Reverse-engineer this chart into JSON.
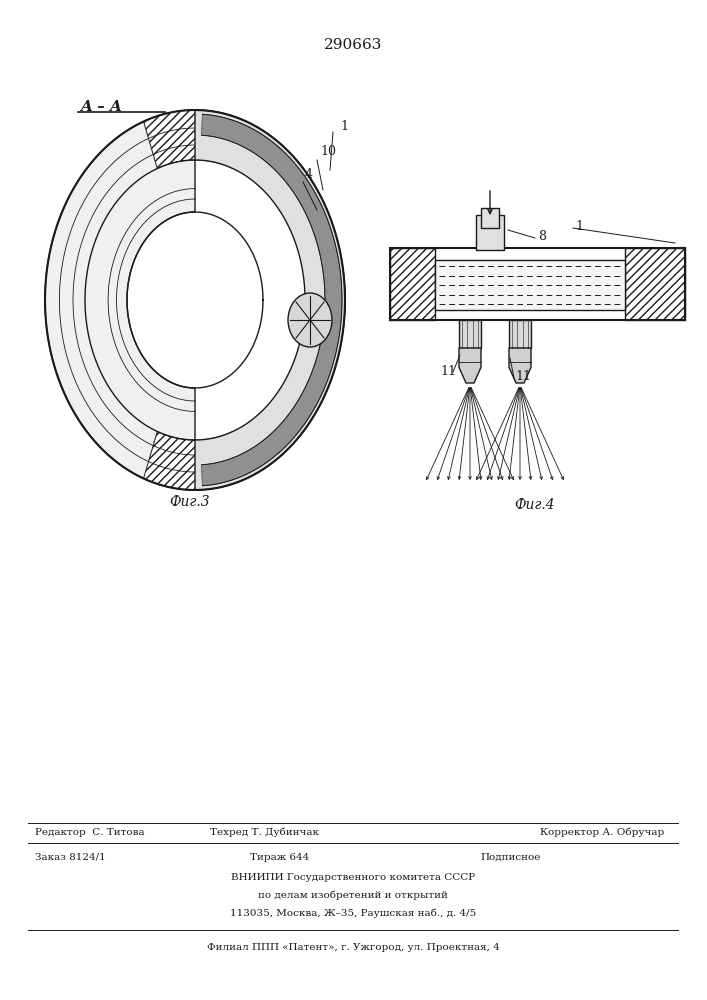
{
  "patent_number": "290663",
  "fig3_label": "Фиг.3",
  "fig4_label": "Фиг.4",
  "section_label": "A – A",
  "footer_line1a": "Редактор  С. Титова",
  "footer_line1b": "Техред Т. Дубинчак",
  "footer_line1c": "Корректор А. Обручар",
  "footer_line2a": "Заказ 8124/1",
  "footer_line2b": "Тираж 644",
  "footer_line2c": "Подписное",
  "footer_line3": "ВНИИПИ Государственного комитета СССР",
  "footer_line4": "по делам изобретений и открытий",
  "footer_line5": "113035, Москва, Ж–35, Раушская наб., д. 4/5",
  "footer_line6": "Филиал ППП «Патент», г. Ужгород, ул. Проектная, 4",
  "bg_color": "#ffffff",
  "line_color": "#1a1a1a"
}
